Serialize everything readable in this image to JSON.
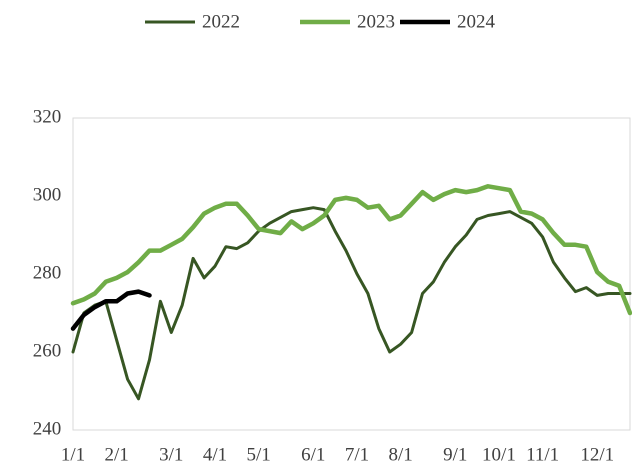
{
  "chart_data": {
    "type": "line",
    "categories": [
      "1/1",
      null,
      null,
      null,
      "2/1",
      null,
      null,
      null,
      null,
      "3/1",
      null,
      null,
      null,
      "4/1",
      null,
      null,
      null,
      "5/1",
      null,
      null,
      null,
      null,
      "6/1",
      null,
      null,
      null,
      "7/1",
      null,
      null,
      null,
      "8/1",
      null,
      null,
      null,
      null,
      "9/1",
      null,
      null,
      null,
      "10/1",
      null,
      null,
      null,
      "11/1",
      null,
      null,
      null,
      null,
      "12/1",
      null,
      null,
      null
    ],
    "series": [
      {
        "name": "2022",
        "color": "#375623",
        "values": [
          260,
          270,
          272,
          273,
          263,
          253,
          248,
          258,
          273,
          265,
          272,
          284,
          279,
          282,
          287,
          286.5,
          288,
          291,
          293,
          294.5,
          296,
          296.5,
          297,
          296.5,
          291,
          286,
          280,
          275,
          266,
          260,
          262,
          265,
          275,
          278,
          283,
          287,
          290,
          294,
          295,
          295.5,
          296,
          294.5,
          293,
          289.5,
          283,
          279,
          275.5,
          276.5,
          274.5,
          275,
          275,
          275
        ]
      },
      {
        "name": "2023",
        "color": "#70ad47",
        "values": [
          272.5,
          273.5,
          275,
          278,
          279,
          280.5,
          283,
          286,
          286,
          287.5,
          289,
          292,
          295.5,
          297,
          298,
          298,
          295,
          291.5,
          291,
          290.5,
          293.5,
          291.5,
          293,
          295,
          299,
          299.5,
          299,
          297,
          297.5,
          294,
          295,
          298,
          301,
          299,
          300.5,
          301.5,
          301,
          301.5,
          302.5,
          302,
          301.5,
          296,
          295.5,
          294,
          290.5,
          287.5,
          287.5,
          287,
          280.5,
          278,
          277,
          270
        ]
      },
      {
        "name": "2024",
        "color": "#000000",
        "values": [
          266,
          269.5,
          271.5,
          273,
          273,
          275,
          275.5,
          274.5,
          null,
          null,
          null,
          null,
          null,
          null,
          null,
          null,
          null,
          null,
          null,
          null,
          null,
          null,
          null,
          null,
          null,
          null,
          null,
          null,
          null,
          null,
          null,
          null,
          null,
          null,
          null,
          null,
          null,
          null,
          null,
          null,
          null,
          null,
          null,
          null,
          null,
          null,
          null,
          null,
          null,
          null,
          null,
          null
        ]
      }
    ],
    "ylim": [
      240,
      320
    ],
    "yticks": [
      240,
      260,
      280,
      300,
      320
    ],
    "grid": false,
    "legend": "top"
  }
}
